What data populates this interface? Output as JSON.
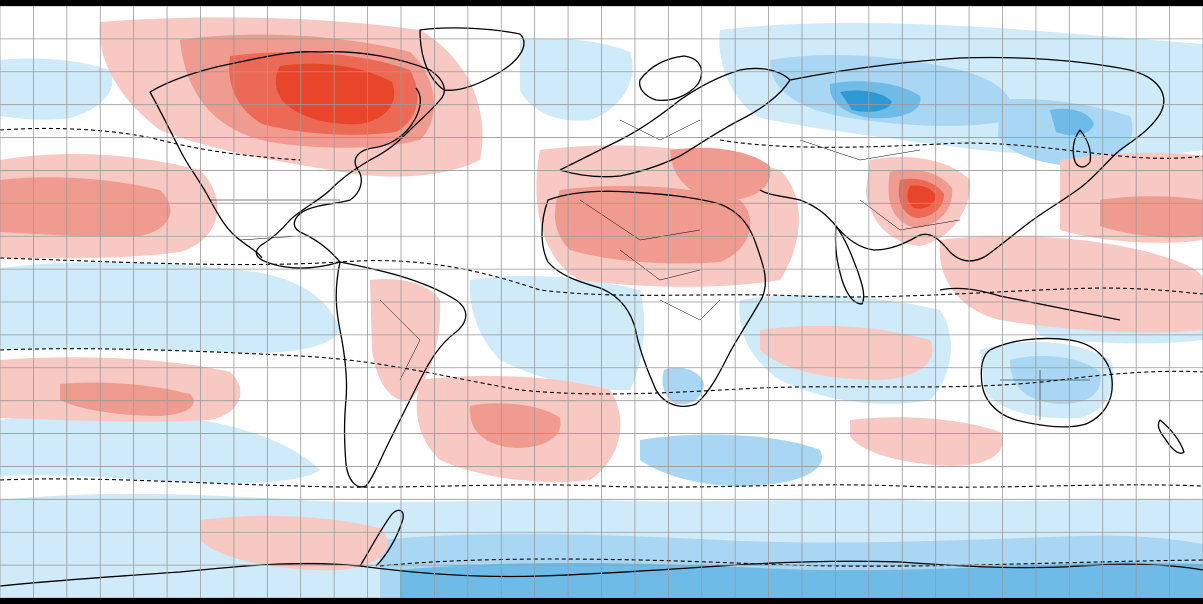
{
  "map": {
    "projection": "equirectangular",
    "lon_range": [
      -180,
      180
    ],
    "lat_range": [
      -90,
      90
    ],
    "graticule_step_deg": 10,
    "colors": {
      "background": "#ffffff",
      "frame": "#000000",
      "grid": "#9a9a9a",
      "coast": "#000000",
      "warm_1": "#f8c8c2",
      "warm_2": "#f09b8f",
      "warm_3": "#ec6a55",
      "warm_4": "#e8452b",
      "cool_1": "#cfeaf8",
      "cool_2": "#a9d6f2",
      "cool_3": "#6fbbe8",
      "cool_4": "#2d9ad6"
    },
    "legend": "none",
    "title": ""
  }
}
